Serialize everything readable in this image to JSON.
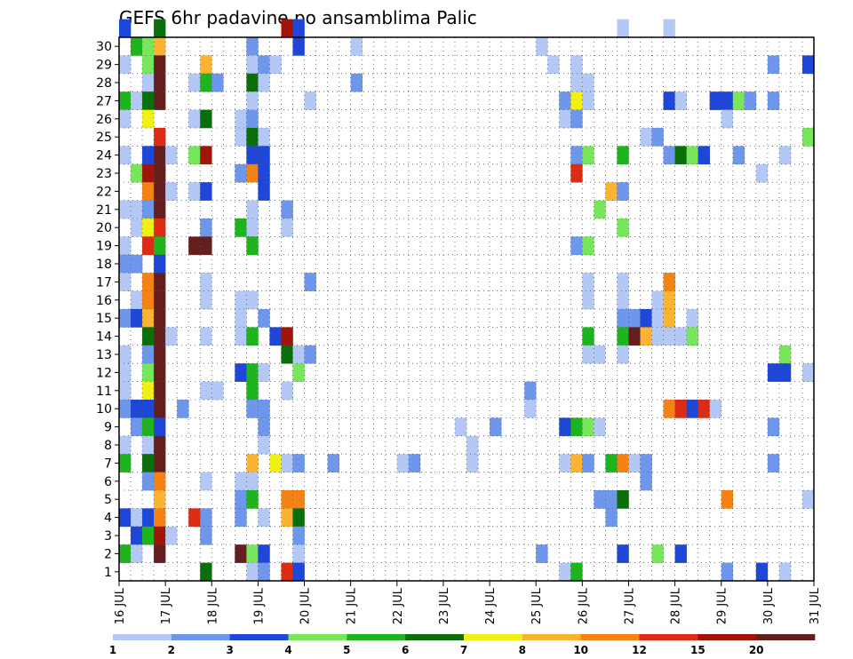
{
  "chart_data": {
    "type": "heatmap",
    "title": "GEFS 6hr padavine po ansamblima Palic",
    "xlabel": "",
    "ylabel": "",
    "x_tick_labels": [
      "16 JUL",
      "17 JUL",
      "18 JUL",
      "19 JUL",
      "20 JUL",
      "21 JUL",
      "22 JUL",
      "23 JUL",
      "24 JUL",
      "25 JUL",
      "26 JUL",
      "27 JUL",
      "28 JUL",
      "29 JUL",
      "30 JUL",
      "31 JUL"
    ],
    "y_tick_labels": [
      "1",
      "2",
      "3",
      "4",
      "5",
      "6",
      "7",
      "8",
      "9",
      "10",
      "11",
      "12",
      "13",
      "14",
      "15",
      "16",
      "17",
      "18",
      "19",
      "20",
      "21",
      "22",
      "23",
      "24",
      "25",
      "26",
      "27",
      "28",
      "29",
      "30"
    ],
    "x_unit": "6-hour steps from 16 JUL 00Z",
    "x_range": [
      0,
      60
    ],
    "y_range": [
      0,
      30
    ],
    "grid": true,
    "colorbar": {
      "labels": [
        "1",
        "2",
        "3",
        "4",
        "5",
        "6",
        "7",
        "8",
        "10",
        "12",
        "15",
        "20"
      ],
      "colors": [
        "#b4c8f5",
        "#6e96eb",
        "#1e46d7",
        "#78e65a",
        "#1eb41e",
        "#0a6e0a",
        "#f0f014",
        "#fab432",
        "#f58214",
        "#dc2d14",
        "#a0140a",
        "#641e1e"
      ]
    },
    "cells": [
      [
        30,
        0,
        2
      ],
      [
        30,
        3,
        5
      ],
      [
        30,
        14,
        10
      ],
      [
        30,
        15,
        2
      ],
      [
        30,
        43,
        0
      ],
      [
        30,
        47,
        0
      ],
      [
        29,
        1,
        4
      ],
      [
        29,
        2,
        3
      ],
      [
        29,
        3,
        7
      ],
      [
        29,
        11,
        1
      ],
      [
        29,
        15,
        2
      ],
      [
        29,
        20,
        0
      ],
      [
        29,
        36,
        0
      ],
      [
        28,
        0,
        0
      ],
      [
        28,
        2,
        3
      ],
      [
        28,
        3,
        11
      ],
      [
        28,
        7,
        7
      ],
      [
        28,
        11,
        0
      ],
      [
        28,
        12,
        1
      ],
      [
        28,
        13,
        0
      ],
      [
        28,
        37,
        0
      ],
      [
        28,
        39,
        0
      ],
      [
        28,
        56,
        1
      ],
      [
        28,
        59,
        2
      ],
      [
        27,
        2,
        0
      ],
      [
        27,
        3,
        11
      ],
      [
        27,
        6,
        0
      ],
      [
        27,
        7,
        4
      ],
      [
        27,
        8,
        1
      ],
      [
        27,
        11,
        5
      ],
      [
        27,
        12,
        0
      ],
      [
        27,
        20,
        1
      ],
      [
        27,
        39,
        0
      ],
      [
        27,
        40,
        0
      ],
      [
        26,
        0,
        4
      ],
      [
        26,
        1,
        0
      ],
      [
        26,
        2,
        5
      ],
      [
        26,
        3,
        11
      ],
      [
        26,
        11,
        0
      ],
      [
        26,
        16,
        0
      ],
      [
        26,
        38,
        1
      ],
      [
        26,
        39,
        6
      ],
      [
        26,
        40,
        0
      ],
      [
        26,
        47,
        2
      ],
      [
        26,
        48,
        0
      ],
      [
        26,
        51,
        2
      ],
      [
        26,
        52,
        2
      ],
      [
        26,
        53,
        3
      ],
      [
        26,
        54,
        1
      ],
      [
        26,
        56,
        1
      ],
      [
        25,
        0,
        0
      ],
      [
        25,
        2,
        6
      ],
      [
        25,
        6,
        0
      ],
      [
        25,
        7,
        5
      ],
      [
        25,
        10,
        0
      ],
      [
        25,
        11,
        1
      ],
      [
        25,
        38,
        0
      ],
      [
        25,
        39,
        1
      ],
      [
        25,
        52,
        0
      ],
      [
        24,
        3,
        9
      ],
      [
        24,
        10,
        0
      ],
      [
        24,
        11,
        5
      ],
      [
        24,
        12,
        0
      ],
      [
        24,
        45,
        0
      ],
      [
        24,
        46,
        1
      ],
      [
        24,
        59,
        3
      ],
      [
        23,
        0,
        0
      ],
      [
        23,
        2,
        2
      ],
      [
        23,
        3,
        11
      ],
      [
        23,
        4,
        0
      ],
      [
        23,
        6,
        3
      ],
      [
        23,
        7,
        10
      ],
      [
        23,
        11,
        2
      ],
      [
        23,
        12,
        2
      ],
      [
        23,
        39,
        1
      ],
      [
        23,
        40,
        3
      ],
      [
        23,
        43,
        4
      ],
      [
        23,
        47,
        1
      ],
      [
        23,
        48,
        5
      ],
      [
        23,
        49,
        3
      ],
      [
        23,
        50,
        2
      ],
      [
        23,
        53,
        1
      ],
      [
        23,
        57,
        0
      ],
      [
        22,
        1,
        3
      ],
      [
        22,
        2,
        10
      ],
      [
        22,
        3,
        11
      ],
      [
        22,
        10,
        1
      ],
      [
        22,
        11,
        8
      ],
      [
        22,
        12,
        2
      ],
      [
        22,
        39,
        9
      ],
      [
        22,
        55,
        0
      ],
      [
        21,
        2,
        8
      ],
      [
        21,
        3,
        11
      ],
      [
        21,
        4,
        0
      ],
      [
        21,
        6,
        0
      ],
      [
        21,
        7,
        2
      ],
      [
        21,
        12,
        2
      ],
      [
        21,
        42,
        7
      ],
      [
        21,
        43,
        1
      ],
      [
        20,
        0,
        0
      ],
      [
        20,
        1,
        0
      ],
      [
        20,
        2,
        1
      ],
      [
        20,
        3,
        11
      ],
      [
        20,
        11,
        0
      ],
      [
        20,
        14,
        1
      ],
      [
        20,
        41,
        3
      ],
      [
        19,
        1,
        0
      ],
      [
        19,
        2,
        6
      ],
      [
        19,
        3,
        9
      ],
      [
        19,
        7,
        1
      ],
      [
        19,
        10,
        4
      ],
      [
        19,
        11,
        0
      ],
      [
        19,
        14,
        0
      ],
      [
        19,
        43,
        3
      ],
      [
        18,
        0,
        0
      ],
      [
        18,
        2,
        9
      ],
      [
        18,
        3,
        4
      ],
      [
        18,
        6,
        11
      ],
      [
        18,
        7,
        11
      ],
      [
        18,
        11,
        4
      ],
      [
        18,
        39,
        1
      ],
      [
        18,
        40,
        3
      ],
      [
        17,
        0,
        1
      ],
      [
        17,
        1,
        1
      ],
      [
        17,
        3,
        2
      ],
      [
        16,
        0,
        0
      ],
      [
        16,
        2,
        8
      ],
      [
        16,
        3,
        11
      ],
      [
        16,
        7,
        0
      ],
      [
        16,
        16,
        1
      ],
      [
        16,
        40,
        0
      ],
      [
        16,
        43,
        0
      ],
      [
        16,
        47,
        8
      ],
      [
        15,
        1,
        0
      ],
      [
        15,
        2,
        8
      ],
      [
        15,
        3,
        11
      ],
      [
        15,
        7,
        0
      ],
      [
        15,
        10,
        0
      ],
      [
        15,
        11,
        0
      ],
      [
        15,
        40,
        0
      ],
      [
        15,
        43,
        0
      ],
      [
        15,
        46,
        0
      ],
      [
        15,
        47,
        7
      ],
      [
        14,
        0,
        1
      ],
      [
        14,
        1,
        2
      ],
      [
        14,
        2,
        7
      ],
      [
        14,
        3,
        11
      ],
      [
        14,
        10,
        0
      ],
      [
        14,
        12,
        1
      ],
      [
        14,
        43,
        1
      ],
      [
        14,
        44,
        1
      ],
      [
        14,
        45,
        2
      ],
      [
        14,
        46,
        0
      ],
      [
        14,
        47,
        7
      ],
      [
        14,
        49,
        0
      ],
      [
        13,
        2,
        5
      ],
      [
        13,
        3,
        11
      ],
      [
        13,
        4,
        0
      ],
      [
        13,
        7,
        0
      ],
      [
        13,
        10,
        0
      ],
      [
        13,
        11,
        4
      ],
      [
        13,
        13,
        2
      ],
      [
        13,
        14,
        10
      ],
      [
        13,
        40,
        4
      ],
      [
        13,
        43,
        4
      ],
      [
        13,
        44,
        11
      ],
      [
        13,
        45,
        7
      ],
      [
        13,
        46,
        0
      ],
      [
        13,
        47,
        0
      ],
      [
        13,
        48,
        0
      ],
      [
        13,
        49,
        3
      ],
      [
        12,
        0,
        0
      ],
      [
        12,
        2,
        1
      ],
      [
        12,
        3,
        11
      ],
      [
        12,
        14,
        5
      ],
      [
        12,
        15,
        0
      ],
      [
        12,
        16,
        1
      ],
      [
        12,
        40,
        0
      ],
      [
        12,
        41,
        0
      ],
      [
        12,
        43,
        0
      ],
      [
        12,
        57,
        3
      ],
      [
        11,
        0,
        0
      ],
      [
        11,
        2,
        3
      ],
      [
        11,
        3,
        11
      ],
      [
        11,
        10,
        2
      ],
      [
        11,
        11,
        4
      ],
      [
        11,
        12,
        0
      ],
      [
        11,
        15,
        3
      ],
      [
        11,
        56,
        2
      ],
      [
        11,
        57,
        2
      ],
      [
        11,
        59,
        0
      ],
      [
        10,
        0,
        0
      ],
      [
        10,
        2,
        6
      ],
      [
        10,
        3,
        11
      ],
      [
        10,
        7,
        0
      ],
      [
        10,
        8,
        0
      ],
      [
        10,
        11,
        4
      ],
      [
        10,
        14,
        0
      ],
      [
        10,
        35,
        1
      ],
      [
        9,
        0,
        1
      ],
      [
        9,
        1,
        2
      ],
      [
        9,
        2,
        2
      ],
      [
        9,
        3,
        11
      ],
      [
        9,
        5,
        1
      ],
      [
        9,
        11,
        1
      ],
      [
        9,
        12,
        1
      ],
      [
        9,
        35,
        0
      ],
      [
        9,
        47,
        8
      ],
      [
        9,
        48,
        9
      ],
      [
        9,
        49,
        2
      ],
      [
        9,
        50,
        9
      ],
      [
        9,
        51,
        0
      ],
      [
        8,
        1,
        1
      ],
      [
        8,
        2,
        4
      ],
      [
        8,
        3,
        2
      ],
      [
        8,
        12,
        1
      ],
      [
        8,
        29,
        0
      ],
      [
        8,
        32,
        1
      ],
      [
        8,
        38,
        2
      ],
      [
        8,
        39,
        4
      ],
      [
        8,
        40,
        3
      ],
      [
        8,
        41,
        0
      ],
      [
        8,
        56,
        1
      ],
      [
        7,
        0,
        0
      ],
      [
        7,
        2,
        0
      ],
      [
        7,
        3,
        11
      ],
      [
        7,
        12,
        0
      ],
      [
        7,
        30,
        0
      ],
      [
        6,
        0,
        4
      ],
      [
        6,
        2,
        5
      ],
      [
        6,
        3,
        11
      ],
      [
        6,
        11,
        7
      ],
      [
        6,
        13,
        6
      ],
      [
        6,
        14,
        0
      ],
      [
        6,
        15,
        1
      ],
      [
        6,
        18,
        1
      ],
      [
        6,
        24,
        0
      ],
      [
        6,
        25,
        1
      ],
      [
        6,
        30,
        0
      ],
      [
        6,
        38,
        0
      ],
      [
        6,
        39,
        7
      ],
      [
        6,
        40,
        1
      ],
      [
        6,
        42,
        4
      ],
      [
        6,
        43,
        8
      ],
      [
        6,
        44,
        0
      ],
      [
        6,
        45,
        1
      ],
      [
        6,
        56,
        1
      ],
      [
        5,
        2,
        1
      ],
      [
        5,
        3,
        8
      ],
      [
        5,
        7,
        0
      ],
      [
        5,
        10,
        0
      ],
      [
        5,
        11,
        0
      ],
      [
        5,
        45,
        1
      ],
      [
        4,
        3,
        7
      ],
      [
        4,
        10,
        1
      ],
      [
        4,
        11,
        4
      ],
      [
        4,
        14,
        8
      ],
      [
        4,
        15,
        8
      ],
      [
        4,
        41,
        1
      ],
      [
        4,
        42,
        1
      ],
      [
        4,
        43,
        5
      ],
      [
        4,
        52,
        8
      ],
      [
        4,
        59,
        0
      ],
      [
        3,
        0,
        2
      ],
      [
        3,
        1,
        0
      ],
      [
        3,
        2,
        2
      ],
      [
        3,
        3,
        8
      ],
      [
        3,
        6,
        9
      ],
      [
        3,
        7,
        1
      ],
      [
        3,
        10,
        1
      ],
      [
        3,
        12,
        0
      ],
      [
        3,
        14,
        7
      ],
      [
        3,
        15,
        5
      ],
      [
        3,
        42,
        1
      ],
      [
        2,
        1,
        2
      ],
      [
        2,
        2,
        4
      ],
      [
        2,
        3,
        10
      ],
      [
        2,
        4,
        0
      ],
      [
        2,
        7,
        1
      ],
      [
        2,
        15,
        1
      ],
      [
        1,
        0,
        4
      ],
      [
        1,
        1,
        0
      ],
      [
        1,
        3,
        11
      ],
      [
        1,
        10,
        11
      ],
      [
        1,
        11,
        3
      ],
      [
        1,
        12,
        2
      ],
      [
        1,
        15,
        0
      ],
      [
        1,
        36,
        1
      ],
      [
        1,
        43,
        2
      ],
      [
        1,
        46,
        3
      ],
      [
        1,
        48,
        2
      ],
      [
        0,
        7,
        5
      ],
      [
        0,
        11,
        0
      ],
      [
        0,
        12,
        1
      ],
      [
        0,
        14,
        9
      ],
      [
        0,
        15,
        2
      ],
      [
        0,
        38,
        0
      ],
      [
        0,
        39,
        4
      ],
      [
        0,
        52,
        1
      ],
      [
        0,
        55,
        2
      ],
      [
        0,
        57,
        0
      ]
    ]
  }
}
